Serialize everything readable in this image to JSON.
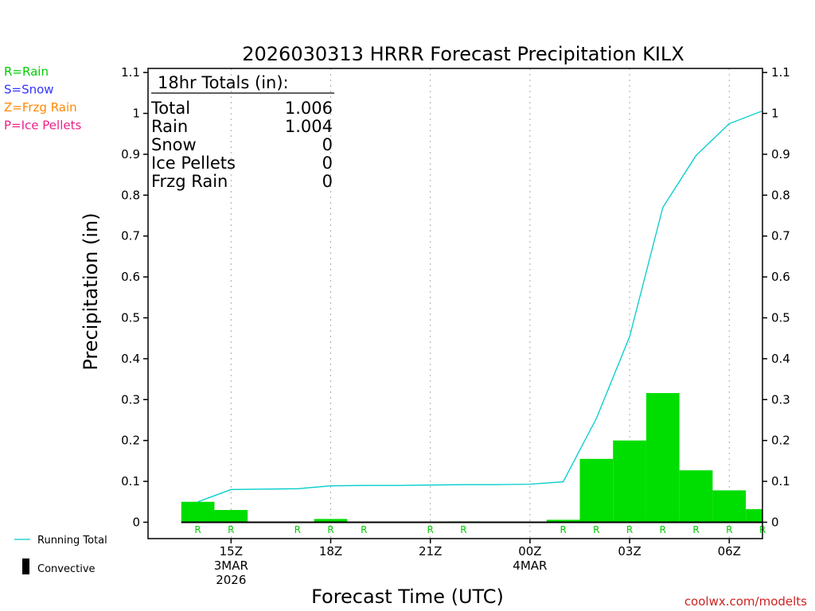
{
  "page": {
    "title": "2026030313 HRRR Forecast Precipitation KILX",
    "source": "coolwx.com/modelts"
  },
  "legend_left": [
    {
      "label": "R=Rain",
      "color": "#00cc00"
    },
    {
      "label": "S=Snow",
      "color": "#3333ff"
    },
    {
      "label": "Z=Frzg Rain",
      "color": "#ff8800"
    },
    {
      "label": "P=Ice Pellets",
      "color": "#ee2288"
    }
  ],
  "legend_bottom": [
    {
      "label": "Running Total",
      "color": "#00cccc"
    },
    {
      "label": "Convective",
      "color": "#000000"
    }
  ],
  "totals": {
    "heading": "18hr Totals (in):",
    "rows": [
      {
        "label": "Total",
        "value": "1.006"
      },
      {
        "label": "Rain",
        "value": "1.004"
      },
      {
        "label": "Snow",
        "value": "0"
      },
      {
        "label": "Ice Pellets",
        "value": "0"
      },
      {
        "label": "Frzg Rain",
        "value": "0"
      }
    ]
  },
  "chart_data": {
    "type": "bar",
    "title": "2026030313 HRRR Forecast Precipitation KILX",
    "xlabel": "Forecast Time (UTC)",
    "ylabel": "Precipitation (in)",
    "ylim": [
      -0.04,
      1.11
    ],
    "yticks": [
      0,
      0.1,
      0.2,
      0.3,
      0.4,
      0.5,
      0.6,
      0.7,
      0.8,
      0.9,
      1,
      1.1
    ],
    "ytick_labels": [
      "0",
      "0.1",
      "0.2",
      "0.3",
      "0.4",
      "0.5",
      "0.6",
      "0.7",
      "0.8",
      "0.9",
      "1",
      "1.1"
    ],
    "xlim_hours_from_init": [
      -0.5,
      18
    ],
    "xticks": [
      {
        "hour": 2,
        "lines": [
          "15Z",
          "3MAR",
          "2026"
        ]
      },
      {
        "hour": 5,
        "lines": [
          "18Z"
        ]
      },
      {
        "hour": 8,
        "lines": [
          "21Z"
        ]
      },
      {
        "hour": 11,
        "lines": [
          "00Z",
          "4MAR"
        ]
      },
      {
        "hour": 14,
        "lines": [
          "03Z"
        ]
      },
      {
        "hour": 17,
        "lines": [
          "06Z"
        ]
      }
    ],
    "grid": "vertical-dotted",
    "hourly_precip": {
      "name": "Rain",
      "color": "#00dd00",
      "hours": [
        1,
        2,
        3,
        4,
        5,
        6,
        7,
        8,
        9,
        10,
        11,
        12,
        13,
        14,
        15,
        16,
        17,
        18
      ],
      "values": [
        0.05,
        0.03,
        0,
        0,
        0.008,
        0,
        0,
        0.001,
        0.002,
        0,
        0,
        0.006,
        0.155,
        0.2,
        0.316,
        0.127,
        0.078,
        0.032
      ]
    },
    "running_total": {
      "name": "Running Total",
      "color": "#00cccc",
      "hours": [
        1,
        2,
        3,
        4,
        5,
        6,
        7,
        8,
        9,
        10,
        11,
        12,
        13,
        14,
        15,
        16,
        17,
        18
      ],
      "values": [
        0.05,
        0.08,
        0.081,
        0.082,
        0.089,
        0.09,
        0.09,
        0.091,
        0.092,
        0.092,
        0.093,
        0.099,
        0.254,
        0.454,
        0.77,
        0.897,
        0.975,
        1.006
      ]
    },
    "precip_type_marks": {
      "symbol": "R",
      "hours": [
        1,
        2,
        4,
        5,
        6,
        8,
        9,
        12,
        13,
        14,
        15,
        16,
        17,
        18
      ]
    }
  }
}
